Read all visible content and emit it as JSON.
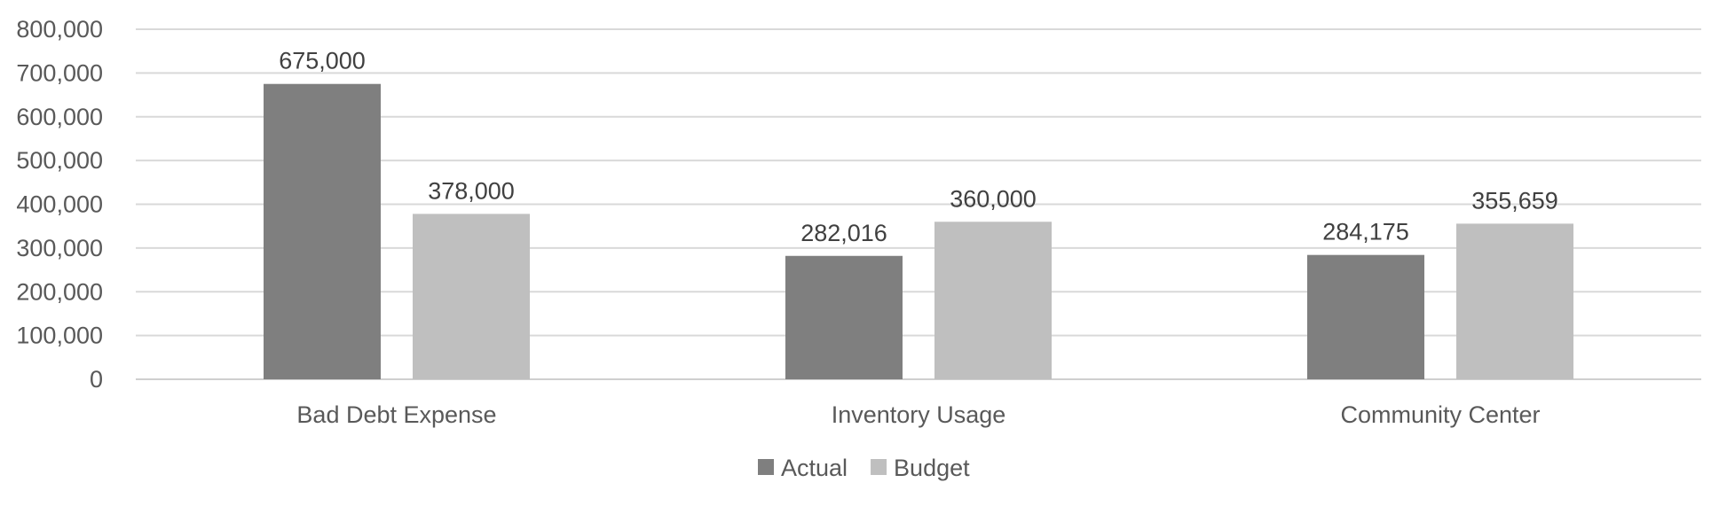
{
  "chart_data": {
    "type": "bar",
    "title": "",
    "xlabel": "",
    "ylabel": "",
    "categories": [
      "Bad Debt Expense",
      "Inventory Usage",
      "Community Center"
    ],
    "series": [
      {
        "name": "Actual",
        "values": [
          675000,
          282016,
          284175
        ],
        "color": "#7f7f7f"
      },
      {
        "name": "Budget",
        "values": [
          378000,
          360000,
          355659
        ],
        "color": "#bfbfbf"
      }
    ],
    "data_labels": [
      [
        "675,000",
        "282,016",
        "284,175"
      ],
      [
        "378,000",
        "360,000",
        "355,659"
      ]
    ],
    "ylim": [
      0,
      800000
    ],
    "yticks": [
      "0",
      "100,000",
      "200,000",
      "300,000",
      "400,000",
      "500,000",
      "600,000",
      "700,000",
      "800,000"
    ],
    "grid": true,
    "legend_position": "bottom"
  }
}
